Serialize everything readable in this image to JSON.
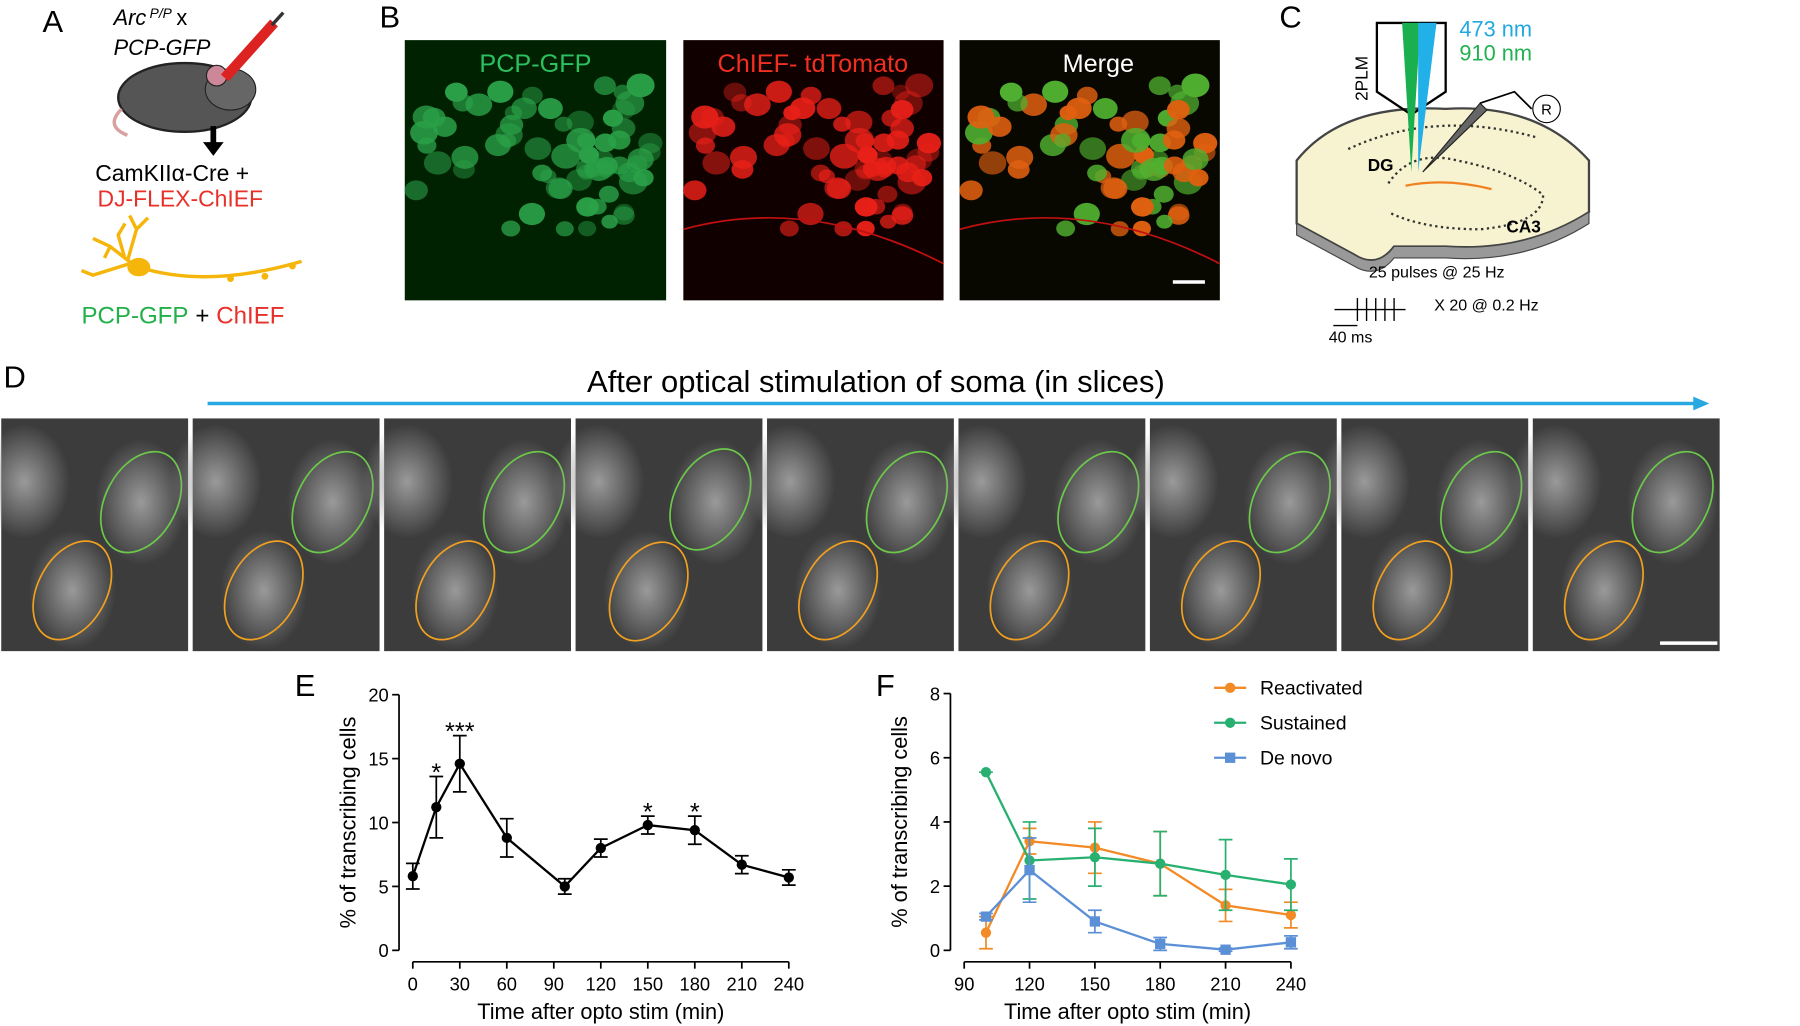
{
  "panel_labels": [
    "A",
    "B",
    "C",
    "D",
    "E",
    "F"
  ],
  "panel_a": {
    "line1": "Arc",
    "superscript": "P/P",
    "line1_suffix": "x",
    "line2": "PCP-GFP",
    "line3": "CamKIIα-Cre +",
    "line4": "DJ-FLEX-ChIEF",
    "legend_green": "PCP-GFP",
    "legend_plus": "+",
    "legend_red": "ChIEF"
  },
  "panel_b": {
    "labels": [
      "PCP-GFP",
      "ChIEF- tdTomato",
      "Merge"
    ]
  },
  "panel_c": {
    "wavelength_blue": "473 nm",
    "wavelength_green": "910 nm",
    "microscope": "2PLM",
    "region_dg": "DG",
    "region_ca3": "CA3",
    "recording": "R",
    "protocol": "25 pulses @ 25 Hz",
    "repeats": "X 20 @ 0.2 Hz",
    "interval": "40 ms"
  },
  "panel_d": {
    "title": "After optical stimulation of soma (in slices)"
  },
  "chart_data": [
    {
      "type": "line",
      "x": [
        0,
        15,
        30,
        60,
        97,
        120,
        150,
        180,
        210,
        240
      ],
      "series": [
        {
          "color": "#000000",
          "marker": "circle",
          "values": [
            5.8,
            11.2,
            14.6,
            8.8,
            5.0,
            8.0,
            9.8,
            9.4,
            6.7,
            5.7
          ],
          "errors": [
            1.0,
            2.4,
            2.2,
            1.5,
            0.6,
            0.7,
            0.7,
            1.1,
            0.7,
            0.6
          ]
        }
      ],
      "annotations": [
        {
          "x": 15,
          "text": "*"
        },
        {
          "x": 30,
          "text": "***"
        },
        {
          "x": 150,
          "text": "*"
        },
        {
          "x": 180,
          "text": "*"
        }
      ],
      "xlim": [
        0,
        240
      ],
      "xticks": [
        0,
        30,
        60,
        90,
        120,
        150,
        180,
        210,
        240
      ],
      "ylim": [
        0,
        20
      ],
      "yticks": [
        0,
        5,
        10,
        15,
        20
      ],
      "x_label": "Time after opto stim (min)",
      "y_label": "% of transcribing cells"
    },
    {
      "type": "line",
      "x": [
        100,
        120,
        150,
        180,
        210,
        240
      ],
      "series": [
        {
          "name": "Reactivated",
          "color": "#f28a26",
          "marker": "circle",
          "values": [
            0.55,
            3.4,
            3.2,
            2.7,
            1.4,
            1.1
          ],
          "errors": [
            0.5,
            0.4,
            0.8,
            1.0,
            0.5,
            0.4
          ]
        },
        {
          "name": "Sustained",
          "color": "#27b070",
          "marker": "circle",
          "values": [
            5.55,
            2.8,
            2.9,
            2.7,
            2.35,
            2.05
          ],
          "errors": [
            0,
            1.2,
            0.9,
            1.0,
            1.1,
            0.8
          ]
        },
        {
          "name": "De novo",
          "color": "#5b8fd6",
          "marker": "square",
          "values": [
            1.05,
            2.5,
            0.9,
            0.2,
            0.02,
            0.25
          ],
          "errors": [
            0.1,
            1.0,
            0.35,
            0.2,
            0.05,
            0.2
          ]
        }
      ],
      "legend": "top-right",
      "xlim": [
        90,
        240
      ],
      "xticks": [
        90,
        120,
        150,
        180,
        210,
        240
      ],
      "ylim": [
        0,
        8
      ],
      "yticks": [
        0,
        2,
        4,
        6,
        8
      ],
      "x_label": "Time after opto stim (min)",
      "y_label": "% of transcribing cells"
    }
  ]
}
